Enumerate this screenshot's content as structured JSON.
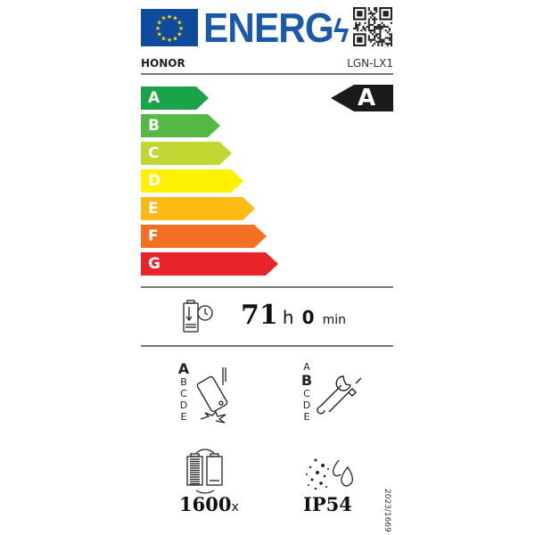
{
  "header": {
    "logo_text": "ENERG",
    "brand": "HONOR",
    "model": "LGN-LX1"
  },
  "energy_classes": [
    {
      "label": "A",
      "color": "#1ba34a"
    },
    {
      "label": "B",
      "color": "#55b948"
    },
    {
      "label": "C",
      "color": "#bfd730"
    },
    {
      "label": "D",
      "color": "#fff200"
    },
    {
      "label": "E",
      "color": "#fdb914"
    },
    {
      "label": "F",
      "color": "#f36f21"
    },
    {
      "label": "G",
      "color": "#e9232a"
    }
  ],
  "rating": {
    "class": "A",
    "color": "#1a1a1a"
  },
  "battery_endurance": {
    "hours": "71",
    "hours_unit": "h",
    "minutes": "0",
    "minutes_unit": "min"
  },
  "drop_resistance": {
    "scale": [
      "A",
      "B",
      "C",
      "D",
      "E"
    ],
    "selected": "A"
  },
  "repairability": {
    "scale": [
      "A",
      "B",
      "C",
      "D",
      "E"
    ],
    "selected": "B"
  },
  "battery_cycles": {
    "value": "1600",
    "unit": "x"
  },
  "ingress_protection": {
    "value": "IP54"
  },
  "regulation": "2023/1669"
}
